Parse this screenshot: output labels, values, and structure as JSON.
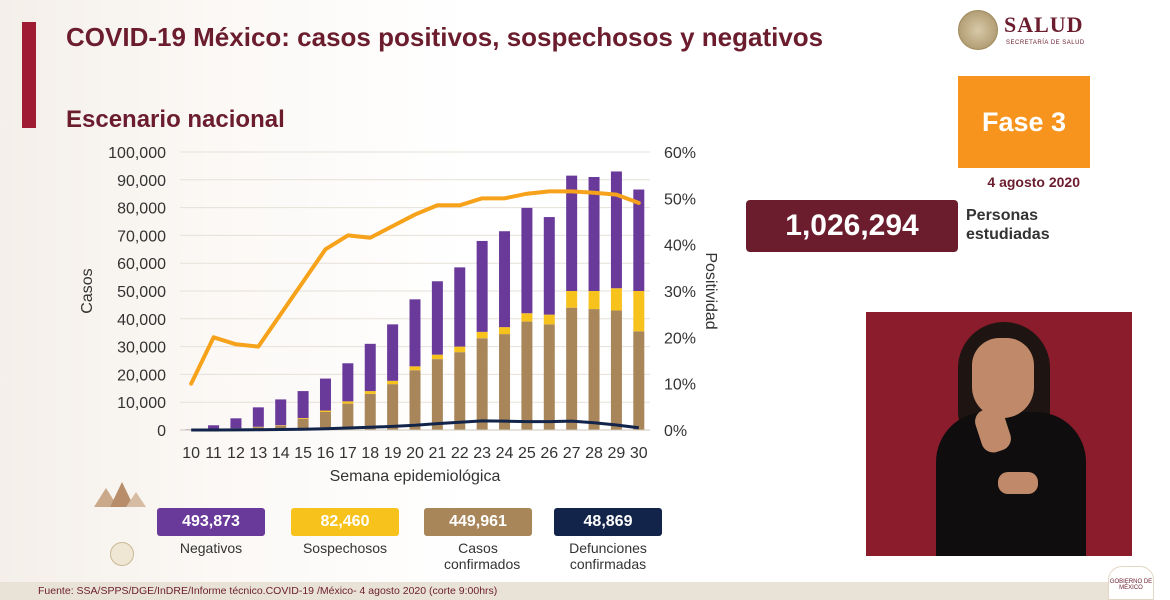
{
  "slide": {
    "title": "COVID-19 México: casos positivos, sospechosos y negativos",
    "subtitle": "Escenario nacional"
  },
  "logo": {
    "word": "SALUD",
    "sub": "SECRETARÍA DE SALUD",
    "icon": "coat-of-arms-seal"
  },
  "phase": {
    "label": "Fase 3",
    "color": "#f7941d"
  },
  "date": "4 agosto 2020",
  "persons_studied": {
    "value": "1,026,294",
    "label": "Personas estudiadas"
  },
  "legend": [
    {
      "value": "493,873",
      "label": "Negativos",
      "color": "#6a3a9a",
      "text_color": "#ffffff"
    },
    {
      "value": "82,460",
      "label": "Sospechosos",
      "color": "#f7c21b",
      "text_color": "#ffffff"
    },
    {
      "value": "449,961",
      "label": "Casos confirmados",
      "color": "#a8865a",
      "text_color": "#ffffff"
    },
    {
      "value": "48,869",
      "label": "Defunciones confirmadas",
      "color": "#13244a",
      "text_color": "#ffffff"
    }
  ],
  "source": "Fuente: SSA/SPPS/DGE/InDRE/Informe técnico.COVID-19 /México- 4 agosto 2020 (corte 9:00hrs)",
  "corner_logo": "GOBIERNO DE MÉXICO",
  "colors": {
    "negativos": "#6a3a9a",
    "sospechosos": "#f7c21b",
    "confirmados": "#a8865a",
    "defunciones": "#13244a",
    "positividad": "#f7a21b",
    "title": "#6b1d2e"
  },
  "chart_data": {
    "type": "bar",
    "stacked": true,
    "xlabel": "Semana epidemiológica",
    "ylabel": "Casos",
    "y2label": "Positividad",
    "ylim": [
      0,
      100000
    ],
    "y2lim": [
      0,
      60
    ],
    "yticks": [
      "0",
      "10,000",
      "20,000",
      "30,000",
      "40,000",
      "50,000",
      "60,000",
      "70,000",
      "80,000",
      "90,000",
      "100,000"
    ],
    "y2ticks": [
      "0%",
      "10%",
      "20%",
      "30%",
      "40%",
      "50%",
      "60%"
    ],
    "categories": [
      "10",
      "11",
      "12",
      "13",
      "14",
      "15",
      "16",
      "17",
      "18",
      "19",
      "20",
      "21",
      "22",
      "23",
      "24",
      "25",
      "26",
      "27",
      "28",
      "29",
      "30"
    ],
    "series": [
      {
        "name": "Casos confirmados",
        "type": "bar",
        "color": "#a8865a",
        "values": [
          50,
          150,
          500,
          1000,
          1500,
          4000,
          6500,
          9500,
          13000,
          16500,
          21500,
          25500,
          28000,
          33000,
          34500,
          39000,
          38000,
          44000,
          43500,
          43000,
          35500
        ]
      },
      {
        "name": "Sospechosos",
        "type": "bar",
        "color": "#f7c21b",
        "values": [
          0,
          50,
          100,
          150,
          200,
          300,
          500,
          800,
          1000,
          1200,
          1400,
          1600,
          2000,
          2300,
          2500,
          3000,
          3500,
          6000,
          6500,
          8000,
          14500
        ]
      },
      {
        "name": "Negativos",
        "type": "bar",
        "color": "#6a3a9a",
        "values": [
          200,
          1500,
          3600,
          7000,
          9300,
          9700,
          11500,
          13700,
          17000,
          20300,
          24100,
          26400,
          28500,
          32700,
          34500,
          37900,
          35100,
          41500,
          41000,
          42000,
          36500
        ]
      },
      {
        "name": "Defunciones confirmadas",
        "type": "line",
        "color": "#13244a",
        "values": [
          0,
          10,
          40,
          90,
          160,
          260,
          440,
          700,
          1000,
          1300,
          1700,
          2300,
          2800,
          3300,
          3200,
          3000,
          3000,
          3200,
          2600,
          1800,
          800
        ]
      },
      {
        "name": "Positividad",
        "type": "line",
        "axis": "right",
        "color": "#f7a21b",
        "values": [
          10,
          20,
          18.5,
          18,
          25,
          32,
          39,
          42,
          41.5,
          44,
          46.5,
          48.5,
          48.5,
          50,
          50,
          51,
          51.5,
          51.5,
          51.2,
          50.8,
          49
        ]
      }
    ]
  }
}
